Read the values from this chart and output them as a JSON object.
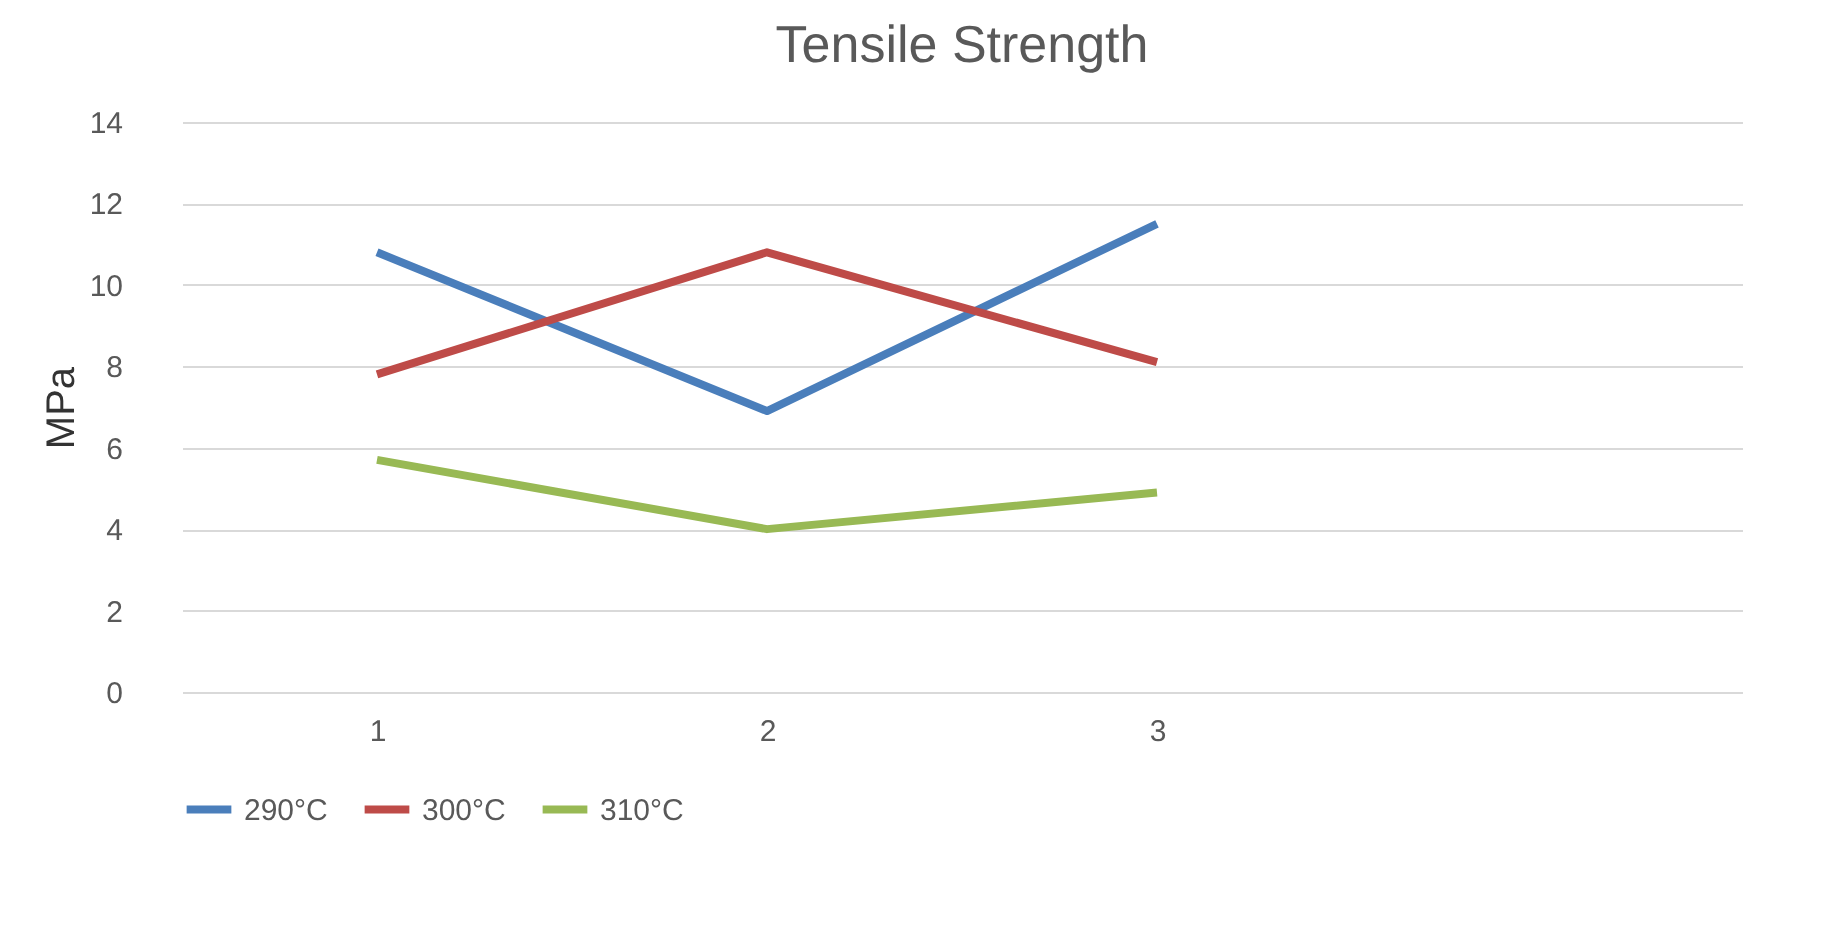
{
  "chart_data": {
    "type": "line",
    "title": "Tensile Strength",
    "ylabel": "MPa",
    "categories": [
      "1",
      "2",
      "3",
      null
    ],
    "series": [
      {
        "name": "290°C",
        "color": "#4a7ebb",
        "values": [
          10.8,
          6.9,
          11.5,
          null
        ]
      },
      {
        "name": "300°C",
        "color": "#be4b48",
        "values": [
          7.8,
          10.8,
          8.1,
          null
        ]
      },
      {
        "name": "310°C",
        "color": "#98b954",
        "values": [
          5.7,
          4.0,
          4.9,
          null
        ]
      }
    ],
    "ylim": [
      0,
      14
    ],
    "yticks": [
      0,
      2,
      4,
      6,
      8,
      10,
      12,
      14
    ],
    "grid": "y",
    "legend": "bottom",
    "marker": "none",
    "line_style": "solid"
  }
}
